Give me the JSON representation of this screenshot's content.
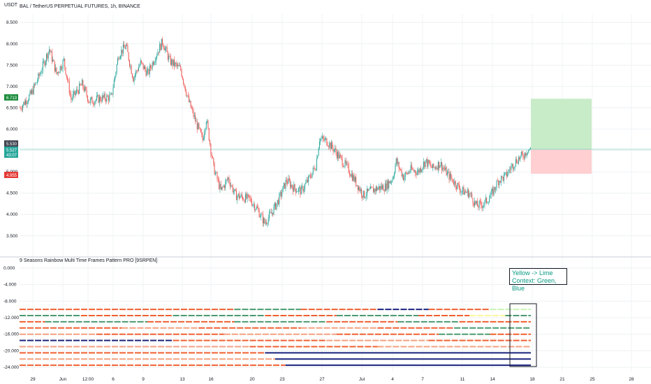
{
  "header": {
    "unit": "USDT",
    "title": "BAL / TetherUS PERPETUAL FUTURES, 1h, BINANCE"
  },
  "indicator": {
    "title": "9 Seasons Rainbow Multi Time Frames Pattern PRO [9SRPEN]",
    "annotation_line1": "Yellow -> Lime",
    "annotation_line2": "Context: Green, Blue"
  },
  "price_tags": {
    "take_profit": "6.713",
    "current": "5.530",
    "entry": "5.527",
    "countdown": "43:07",
    "stop": "4.955"
  },
  "colors": {
    "up": "#26a69a",
    "down": "#ef5350",
    "tp_zone": "#c8ebc8",
    "sl_zone": "#ffcfd2",
    "navy": "#1a237e",
    "orange": "#f06030",
    "salmon": "#f5a080",
    "green": "#4a9a70",
    "lime": "#c8f5b4",
    "yellow": "#fff59d"
  },
  "chart_data": [
    {
      "type": "candlestick",
      "title": "BAL / TetherUS PERPETUAL FUTURES, 1h, BINANCE",
      "ylabel": "USDT",
      "ylim": [
        3.3,
        8.7
      ],
      "yticks": [
        "8.500",
        "8.000",
        "7.500",
        "7.000",
        "6.500",
        "6.000",
        "5.500",
        "5.000",
        "4.500",
        "4.000",
        "3.500"
      ],
      "xticks": [
        "29",
        "Jun",
        "12:00",
        "6",
        "9",
        "13",
        "16",
        "20",
        "23",
        "27",
        "Jul",
        "4",
        "7",
        "11",
        "14",
        "18",
        "21",
        "25",
        "28"
      ],
      "price_path": [
        [
          0,
          6.5
        ],
        [
          3,
          6.82
        ],
        [
          5,
          7.2
        ],
        [
          8,
          7.88
        ],
        [
          10,
          7.3
        ],
        [
          12,
          7.6
        ],
        [
          14,
          6.7
        ],
        [
          17,
          7.05
        ],
        [
          19,
          6.65
        ],
        [
          22,
          6.72
        ],
        [
          25,
          6.75
        ],
        [
          27,
          7.75
        ],
        [
          29,
          7.95
        ],
        [
          31,
          7.2
        ],
        [
          33,
          7.55
        ],
        [
          35,
          7.3
        ],
        [
          37,
          7.7
        ],
        [
          39,
          8.05
        ],
        [
          41,
          7.6
        ],
        [
          44,
          7.4
        ],
        [
          46,
          6.7
        ],
        [
          48,
          6.2
        ],
        [
          50,
          5.75
        ],
        [
          51,
          6.25
        ],
        [
          53,
          5.1
        ],
        [
          55,
          4.55
        ],
        [
          57,
          4.85
        ],
        [
          59,
          4.45
        ],
        [
          61,
          4.4
        ],
        [
          63,
          4.35
        ],
        [
          65,
          4.12
        ],
        [
          67,
          3.8
        ],
        [
          69,
          4.05
        ],
        [
          71,
          4.38
        ],
        [
          73,
          4.8
        ],
        [
          75,
          4.62
        ],
        [
          77,
          4.55
        ],
        [
          79,
          4.82
        ],
        [
          81,
          5.15
        ],
        [
          82,
          5.78
        ],
        [
          84,
          5.72
        ],
        [
          86,
          5.52
        ],
        [
          88,
          5.28
        ],
        [
          90,
          5.05
        ],
        [
          92,
          4.75
        ],
        [
          94,
          4.45
        ],
        [
          96,
          4.55
        ],
        [
          98,
          4.62
        ],
        [
          100,
          4.65
        ],
        [
          102,
          4.85
        ],
        [
          103,
          5.25
        ],
        [
          105,
          4.88
        ],
        [
          107,
          5.05
        ],
        [
          109,
          5.0
        ],
        [
          111,
          5.25
        ],
        [
          113,
          5.08
        ],
        [
          115,
          5.2
        ],
        [
          117,
          4.95
        ],
        [
          119,
          4.75
        ],
        [
          121,
          4.55
        ],
        [
          123,
          4.5
        ],
        [
          125,
          4.2
        ],
        [
          127,
          4.25
        ],
        [
          129,
          4.45
        ],
        [
          131,
          4.8
        ],
        [
          133,
          4.9
        ],
        [
          134,
          5.05
        ],
        [
          136,
          5.28
        ],
        [
          138,
          5.4
        ],
        [
          139,
          5.527
        ]
      ],
      "tp_level": 6.713,
      "entry_level": 5.527,
      "stop_level": 4.955
    },
    {
      "type": "line",
      "title": "9 Seasons Rainbow Multi Time Frames Pattern PRO [9SRPEN]",
      "ylim": [
        -25,
        1
      ],
      "yticks": [
        "0.000",
        "-4.000",
        "-8.000",
        "-12.000",
        "-16.000",
        "-20.000",
        "-24.000"
      ],
      "rows": [
        {
          "level": -10,
          "segments": [
            [
              0,
              0.42,
              "orange"
            ],
            [
              0.42,
              0.55,
              "green"
            ],
            [
              0.55,
              0.7,
              "orange"
            ],
            [
              0.7,
              0.8,
              "navy"
            ],
            [
              0.8,
              0.92,
              "orange"
            ],
            [
              0.92,
              1.0,
              "lime"
            ]
          ]
        },
        {
          "level": -11.5,
          "segments": [
            [
              0,
              0.12,
              "green"
            ],
            [
              0.12,
              0.3,
              "orange"
            ],
            [
              0.3,
              0.48,
              "green"
            ],
            [
              0.48,
              0.62,
              "orange"
            ],
            [
              0.62,
              0.78,
              "green"
            ],
            [
              0.78,
              0.88,
              "orange"
            ],
            [
              0.88,
              0.95,
              "yellow"
            ],
            [
              0.95,
              1.0,
              "green"
            ]
          ]
        },
        {
          "level": -13,
          "segments": [
            [
              0,
              0.05,
              "orange"
            ],
            [
              0.05,
              0.25,
              "green"
            ],
            [
              0.25,
              0.42,
              "orange"
            ],
            [
              0.42,
              0.6,
              "green"
            ],
            [
              0.6,
              0.74,
              "orange"
            ],
            [
              0.74,
              0.86,
              "green"
            ],
            [
              0.86,
              1.0,
              "orange"
            ]
          ]
        },
        {
          "level": -14.5,
          "segments": [
            [
              0,
              0.2,
              "orange"
            ],
            [
              0.2,
              0.35,
              "salmon"
            ],
            [
              0.35,
              0.55,
              "orange"
            ],
            [
              0.55,
              0.7,
              "salmon"
            ],
            [
              0.7,
              0.85,
              "orange"
            ],
            [
              0.85,
              1.0,
              "green"
            ]
          ]
        },
        {
          "level": -16,
          "segments": [
            [
              0,
              0.15,
              "salmon"
            ],
            [
              0.15,
              0.4,
              "orange"
            ],
            [
              0.4,
              0.62,
              "salmon"
            ],
            [
              0.62,
              0.82,
              "orange"
            ],
            [
              0.82,
              0.92,
              "green"
            ],
            [
              0.92,
              1.0,
              "orange"
            ]
          ]
        },
        {
          "level": -17.5,
          "segments": [
            [
              0,
              0.3,
              "navy"
            ],
            [
              0.3,
              0.6,
              "orange"
            ],
            [
              0.6,
              0.8,
              "salmon"
            ],
            [
              0.8,
              1.0,
              "orange"
            ]
          ]
        },
        {
          "level": -19,
          "segments": [
            [
              0,
              0.45,
              "salmon"
            ],
            [
              0.45,
              0.7,
              "orange"
            ],
            [
              0.7,
              1.0,
              "salmon"
            ]
          ]
        },
        {
          "level": -20.5,
          "segments": [
            [
              0,
              0.48,
              "orange"
            ],
            [
              0.48,
              1.0,
              "navy"
            ]
          ]
        },
        {
          "level": -22,
          "segments": [
            [
              0,
              0.5,
              "salmon"
            ],
            [
              0.5,
              1.0,
              "navy"
            ]
          ]
        },
        {
          "level": -23.5,
          "segments": [
            [
              0,
              0.52,
              "orange"
            ],
            [
              0.52,
              1.0,
              "navy"
            ]
          ]
        }
      ]
    }
  ]
}
